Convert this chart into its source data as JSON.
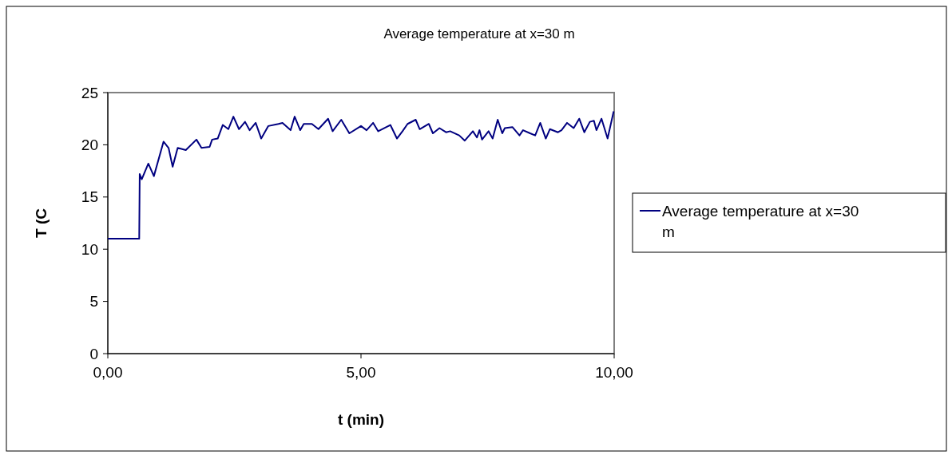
{
  "chart_data": {
    "type": "line",
    "title": "Average temperature at x=30 m",
    "xlabel": "t (min)",
    "ylabel": "T (C",
    "xlim": [
      0,
      10
    ],
    "xticks": [
      {
        "value": 0,
        "label": "0,00"
      },
      {
        "value": 5,
        "label": "5,00"
      },
      {
        "value": 10,
        "label": "10,00"
      }
    ],
    "ylim": [
      0,
      25
    ],
    "yticks": [
      0,
      5,
      10,
      15,
      20,
      25
    ],
    "legend": "right",
    "grid": false,
    "series": [
      {
        "name": "Average temperature at x=30 m",
        "color": "#000080",
        "x": [
          0,
          0.62,
          0.63,
          0.67,
          0.8,
          0.91,
          1.1,
          1.2,
          1.28,
          1.38,
          1.54,
          1.75,
          1.85,
          2.01,
          2.06,
          2.17,
          2.27,
          2.38,
          2.48,
          2.59,
          2.71,
          2.8,
          2.92,
          3.03,
          3.17,
          3.37,
          3.45,
          3.61,
          3.69,
          3.8,
          3.87,
          4.03,
          4.16,
          4.35,
          4.44,
          4.61,
          4.77,
          5.0,
          5.11,
          5.24,
          5.34,
          5.58,
          5.71,
          5.82,
          5.92,
          6.08,
          6.16,
          6.34,
          6.42,
          6.55,
          6.68,
          6.76,
          6.94,
          7.05,
          7.21,
          7.29,
          7.34,
          7.39,
          7.52,
          7.6,
          7.7,
          7.79,
          7.84,
          7.99,
          8.13,
          8.2,
          8.34,
          8.44,
          8.54,
          8.65,
          8.73,
          8.89,
          8.96,
          9.07,
          9.2,
          9.31,
          9.41,
          9.52,
          9.6,
          9.65,
          9.75,
          9.87,
          9.99
        ],
        "values": [
          11,
          11,
          17.2,
          16.7,
          18.2,
          17,
          20.3,
          19.7,
          17.9,
          19.7,
          19.5,
          20.5,
          19.7,
          19.8,
          20.5,
          20.6,
          21.9,
          21.5,
          22.7,
          21.5,
          22.2,
          21.4,
          22.1,
          20.6,
          21.8,
          22,
          22.1,
          21.4,
          22.7,
          21.4,
          22,
          22,
          21.5,
          22.5,
          21.3,
          22.4,
          21.1,
          21.8,
          21.4,
          22.1,
          21.3,
          21.9,
          20.6,
          21.3,
          22,
          22.4,
          21.5,
          22,
          21.1,
          21.6,
          21.2,
          21.3,
          20.9,
          20.4,
          21.3,
          20.7,
          21.4,
          20.5,
          21.3,
          20.6,
          22.4,
          21.1,
          21.6,
          21.7,
          20.9,
          21.4,
          21.1,
          20.9,
          22.1,
          20.6,
          21.5,
          21.2,
          21.4,
          22.1,
          21.6,
          22.5,
          21.2,
          22.2,
          22.3,
          21.4,
          22.5,
          20.6,
          23.2
        ]
      }
    ]
  }
}
